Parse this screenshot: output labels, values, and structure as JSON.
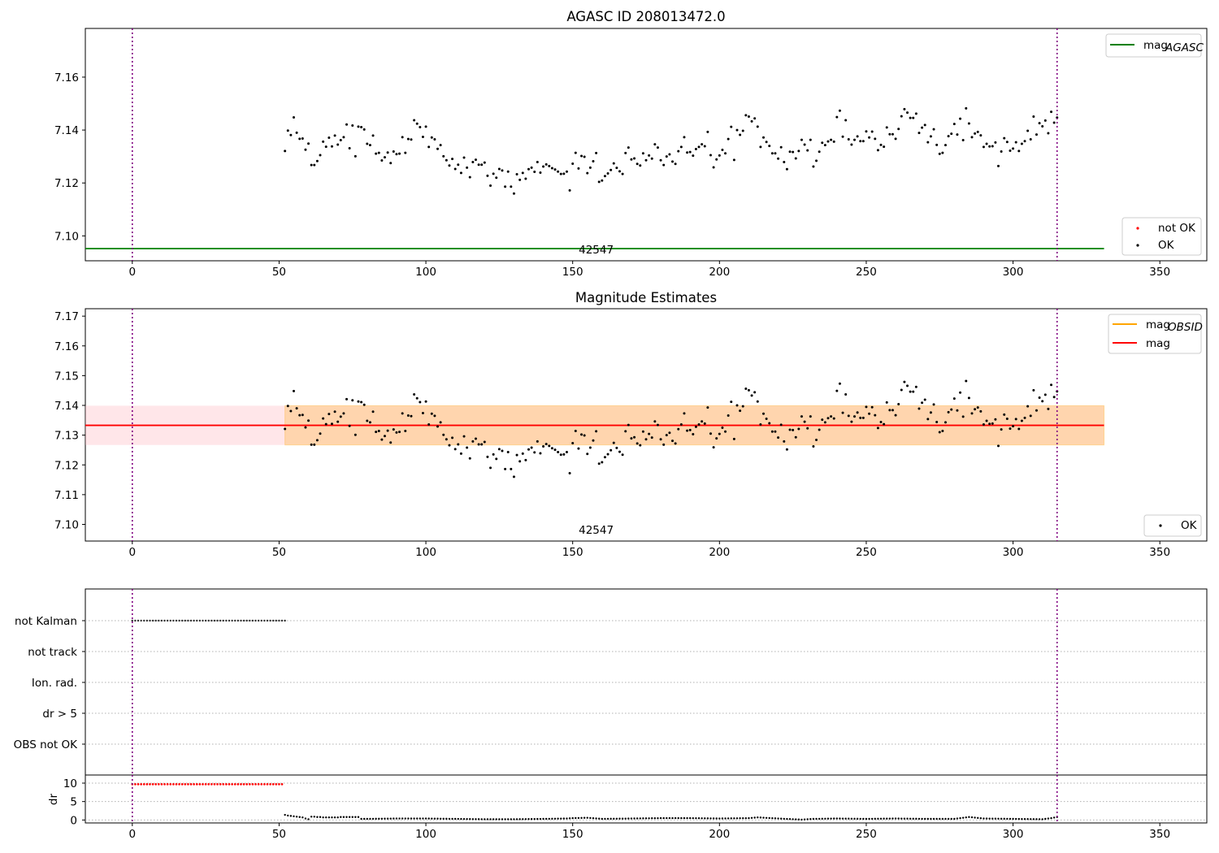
{
  "chart_data": [
    {
      "type": "scatter",
      "title": "AGASC ID 208013472.0",
      "annotation": "42547",
      "x_ticks": [
        0,
        50,
        100,
        150,
        200,
        250,
        300,
        350
      ],
      "y_ticks": [
        "7.10",
        "7.12",
        "7.14",
        "7.16"
      ],
      "xlim": [
        -16,
        366
      ],
      "ylim": [
        7.0906,
        7.1784
      ],
      "vlines": [
        0,
        315
      ],
      "legend_top": [
        {
          "label": "mag",
          "sub": "AGASC",
          "color": "#008000"
        }
      ],
      "legend_bottom": [
        {
          "label": "not OK",
          "color": "#ff0000"
        },
        {
          "label": "OK",
          "color": "#000000"
        }
      ],
      "line": {
        "name": "mag_AGASC",
        "x": [
          -16,
          331
        ],
        "y": 7.0952,
        "color": "#008000"
      },
      "series": [
        {
          "name": "OK",
          "color": "#000000",
          "ref": "points"
        }
      ]
    },
    {
      "type": "scatter",
      "title": "Magnitude Estimates",
      "annotation": "42547",
      "x_ticks": [
        0,
        50,
        100,
        150,
        200,
        250,
        300,
        350
      ],
      "y_ticks": [
        "7.10",
        "7.11",
        "7.12",
        "7.13",
        "7.14",
        "7.15",
        "7.16",
        "7.17"
      ],
      "xlim": [
        -16,
        366
      ],
      "ylim": [
        7.0944,
        7.1725
      ],
      "vlines": [
        0,
        315
      ],
      "legend_top": [
        {
          "label": "mag",
          "sub": "OBSID",
          "color": "#ffa500"
        },
        {
          "label": "mag",
          "sub": "",
          "color": "#ff0000"
        }
      ],
      "legend_bottom": [
        {
          "label": "OK",
          "color": "#000000"
        }
      ],
      "mag_line": 7.1333,
      "band_inner": [
        7.1267,
        7.1399
      ],
      "band_outer": [
        7.1267,
        7.1399
      ],
      "series": [
        {
          "name": "OK",
          "color": "#000000",
          "ref": "points"
        }
      ]
    },
    {
      "type": "scatter",
      "title": "",
      "flag_labels": [
        "not Kalman",
        "not track",
        "Ion. rad.",
        "dr > 5",
        "OBS not OK"
      ],
      "not_kalman_x": [
        0,
        52
      ],
      "xlim": [
        -16,
        366
      ],
      "vlines": [
        0,
        315
      ]
    },
    {
      "type": "scatter",
      "title": "",
      "ylabel": "dr",
      "y_ticks": [
        "0",
        "5",
        "10"
      ],
      "x_ticks": [
        0,
        50,
        100,
        150,
        200,
        250,
        300,
        350
      ],
      "ylim": [
        -0.8,
        12.2
      ],
      "xlim": [
        -16,
        366
      ],
      "dr_high": {
        "x": [
          0,
          51.5
        ],
        "y": 9.7,
        "color": "#ff0000"
      },
      "dr_points": [
        [
          52,
          1.4
        ],
        [
          53,
          1.2
        ],
        [
          54,
          1.1
        ],
        [
          55,
          1.0
        ],
        [
          56,
          0.9
        ],
        [
          57,
          0.8
        ],
        [
          58,
          0.7
        ],
        [
          59,
          0.4
        ],
        [
          60,
          0.2
        ],
        [
          61,
          0.9
        ],
        [
          62,
          0.9
        ],
        [
          63,
          0.8
        ],
        [
          64,
          0.8
        ],
        [
          65,
          0.7
        ],
        [
          66,
          0.7
        ],
        [
          67,
          0.7
        ],
        [
          68,
          0.7
        ],
        [
          69,
          0.7
        ],
        [
          70,
          0.7
        ],
        [
          71,
          0.8
        ],
        [
          72,
          0.8
        ],
        [
          73,
          0.8
        ],
        [
          74,
          0.8
        ],
        [
          75,
          0.8
        ],
        [
          76,
          0.8
        ],
        [
          77,
          0.8
        ],
        [
          78,
          0.3
        ],
        [
          80,
          0.3
        ],
        [
          90,
          0.4
        ],
        [
          100,
          0.4
        ],
        [
          110,
          0.3
        ],
        [
          120,
          0.2
        ],
        [
          130,
          0.2
        ],
        [
          140,
          0.3
        ],
        [
          148,
          0.4
        ],
        [
          150,
          0.5
        ],
        [
          155,
          0.6
        ],
        [
          160,
          0.3
        ],
        [
          170,
          0.4
        ],
        [
          180,
          0.5
        ],
        [
          190,
          0.5
        ],
        [
          200,
          0.4
        ],
        [
          210,
          0.5
        ],
        [
          213,
          0.7
        ],
        [
          220,
          0.4
        ],
        [
          228,
          0.1
        ],
        [
          232,
          0.3
        ],
        [
          240,
          0.4
        ],
        [
          250,
          0.3
        ],
        [
          260,
          0.4
        ],
        [
          270,
          0.3
        ],
        [
          280,
          0.3
        ],
        [
          285,
          0.8
        ],
        [
          290,
          0.4
        ],
        [
          300,
          0.3
        ],
        [
          310,
          0.2
        ],
        [
          313,
          0.5
        ],
        [
          315,
          0.8
        ]
      ]
    }
  ],
  "points": [
    [
      52,
      7.1321
    ],
    [
      53,
      7.1398
    ],
    [
      54,
      7.1381
    ],
    [
      55,
      7.1448
    ],
    [
      56,
      7.139
    ],
    [
      57,
      7.1367
    ],
    [
      58,
      7.1368
    ],
    [
      59,
      7.1326
    ],
    [
      60,
      7.1349
    ],
    [
      61,
      7.1268
    ],
    [
      62,
      7.1268
    ],
    [
      63,
      7.1283
    ],
    [
      64,
      7.1305
    ],
    [
      65,
      7.1356
    ],
    [
      66,
      7.1337
    ],
    [
      67,
      7.1371
    ],
    [
      68,
      7.1338
    ],
    [
      69,
      7.1379
    ],
    [
      70,
      7.1345
    ],
    [
      71,
      7.1362
    ],
    [
      72,
      7.1373
    ],
    [
      73,
      7.1421
    ],
    [
      74,
      7.1331
    ],
    [
      75,
      7.1417
    ],
    [
      76,
      7.1301
    ],
    [
      77,
      7.1413
    ],
    [
      78,
      7.1411
    ],
    [
      79,
      7.1402
    ],
    [
      80,
      7.1348
    ],
    [
      81,
      7.1343
    ],
    [
      82,
      7.1379
    ],
    [
      83,
      7.1311
    ],
    [
      84,
      7.1314
    ],
    [
      85,
      7.1285
    ],
    [
      86,
      7.1297
    ],
    [
      87,
      7.1315
    ],
    [
      88,
      7.1275
    ],
    [
      89,
      7.1319
    ],
    [
      90,
      7.1309
    ],
    [
      91,
      7.1311
    ],
    [
      92,
      7.1373
    ],
    [
      93,
      7.1314
    ],
    [
      94,
      7.1366
    ],
    [
      95,
      7.1364
    ],
    [
      96,
      7.1437
    ],
    [
      97,
      7.1424
    ],
    [
      98,
      7.1411
    ],
    [
      99,
      7.1374
    ],
    [
      100,
      7.1413
    ],
    [
      101,
      7.1336
    ],
    [
      102,
      7.1372
    ],
    [
      103,
      7.1365
    ],
    [
      104,
      7.1329
    ],
    [
      105,
      7.1343
    ],
    [
      106,
      7.1301
    ],
    [
      107,
      7.1286
    ],
    [
      108,
      7.1266
    ],
    [
      109,
      7.1291
    ],
    [
      110,
      7.1253
    ],
    [
      111,
      7.1269
    ],
    [
      112,
      7.1238
    ],
    [
      113,
      7.1296
    ],
    [
      114,
      7.1258
    ],
    [
      115,
      7.1222
    ],
    [
      116,
      7.1279
    ],
    [
      117,
      7.1288
    ],
    [
      118,
      7.1269
    ],
    [
      119,
      7.1269
    ],
    [
      120,
      7.1277
    ],
    [
      121,
      7.1227
    ],
    [
      122,
      7.119
    ],
    [
      123,
      7.1235
    ],
    [
      124,
      7.122
    ],
    [
      125,
      7.1253
    ],
    [
      126,
      7.1247
    ],
    [
      127,
      7.1186
    ],
    [
      128,
      7.1243
    ],
    [
      129,
      7.1186
    ],
    [
      130,
      7.116
    ],
    [
      131,
      7.1233
    ],
    [
      132,
      7.1212
    ],
    [
      133,
      7.1238
    ],
    [
      134,
      7.1216
    ],
    [
      135,
      7.1252
    ],
    [
      136,
      7.1258
    ],
    [
      137,
      7.1242
    ],
    [
      138,
      7.1279
    ],
    [
      139,
      7.1239
    ],
    [
      140,
      7.1262
    ],
    [
      141,
      7.127
    ],
    [
      142,
      7.1264
    ],
    [
      143,
      7.1256
    ],
    [
      144,
      7.1251
    ],
    [
      145,
      7.1243
    ],
    [
      146,
      7.1234
    ],
    [
      147,
      7.1235
    ],
    [
      148,
      7.1243
    ],
    [
      149,
      7.1172
    ],
    [
      150,
      7.1273
    ],
    [
      151,
      7.1314
    ],
    [
      152,
      7.1255
    ],
    [
      153,
      7.1302
    ],
    [
      154,
      7.1299
    ],
    [
      155,
      7.1237
    ],
    [
      156,
      7.1258
    ],
    [
      157,
      7.1282
    ],
    [
      158,
      7.1313
    ],
    [
      159,
      7.1204
    ],
    [
      160,
      7.1209
    ],
    [
      161,
      7.1226
    ],
    [
      162,
      7.1236
    ],
    [
      163,
      7.1249
    ],
    [
      164,
      7.1274
    ],
    [
      165,
      7.1257
    ],
    [
      166,
      7.1244
    ],
    [
      167,
      7.1234
    ],
    [
      168,
      7.1313
    ],
    [
      169,
      7.1334
    ],
    [
      170,
      7.1289
    ],
    [
      171,
      7.1293
    ],
    [
      172,
      7.1272
    ],
    [
      173,
      7.1266
    ],
    [
      174,
      7.1312
    ],
    [
      175,
      7.1286
    ],
    [
      176,
      7.1304
    ],
    [
      177,
      7.1292
    ],
    [
      178,
      7.1346
    ],
    [
      179,
      7.1334
    ],
    [
      180,
      7.1286
    ],
    [
      181,
      7.1268
    ],
    [
      182,
      7.13
    ],
    [
      183,
      7.1308
    ],
    [
      184,
      7.1281
    ],
    [
      185,
      7.1272
    ],
    [
      186,
      7.132
    ],
    [
      187,
      7.1336
    ],
    [
      188,
      7.1373
    ],
    [
      189,
      7.1315
    ],
    [
      190,
      7.1317
    ],
    [
      191,
      7.1303
    ],
    [
      192,
      7.1328
    ],
    [
      193,
      7.1336
    ],
    [
      194,
      7.1346
    ],
    [
      195,
      7.1339
    ],
    [
      196,
      7.1393
    ],
    [
      197,
      7.1305
    ],
    [
      198,
      7.1259
    ],
    [
      199,
      7.1289
    ],
    [
      200,
      7.1304
    ],
    [
      201,
      7.1325
    ],
    [
      202,
      7.1312
    ],
    [
      203,
      7.1366
    ],
    [
      204,
      7.1412
    ],
    [
      205,
      7.1287
    ],
    [
      206,
      7.14
    ],
    [
      207,
      7.1382
    ],
    [
      208,
      7.1397
    ],
    [
      209,
      7.1456
    ],
    [
      210,
      7.1451
    ],
    [
      211,
      7.1433
    ],
    [
      212,
      7.1444
    ],
    [
      213,
      7.1413
    ],
    [
      214,
      7.1336
    ],
    [
      215,
      7.1372
    ],
    [
      216,
      7.1355
    ],
    [
      217,
      7.134
    ],
    [
      218,
      7.1312
    ],
    [
      219,
      7.1312
    ],
    [
      220,
      7.1292
    ],
    [
      221,
      7.1335
    ],
    [
      222,
      7.1279
    ],
    [
      223,
      7.1252
    ],
    [
      224,
      7.1318
    ],
    [
      225,
      7.1317
    ],
    [
      226,
      7.1293
    ],
    [
      227,
      7.1321
    ],
    [
      228,
      7.1363
    ],
    [
      229,
      7.1345
    ],
    [
      230,
      7.1323
    ],
    [
      231,
      7.1363
    ],
    [
      232,
      7.1262
    ],
    [
      233,
      7.1284
    ],
    [
      234,
      7.1318
    ],
    [
      235,
      7.1352
    ],
    [
      236,
      7.1343
    ],
    [
      237,
      7.1357
    ],
    [
      238,
      7.1363
    ],
    [
      239,
      7.1356
    ],
    [
      240,
      7.1449
    ],
    [
      241,
      7.1473
    ],
    [
      242,
      7.1375
    ],
    [
      243,
      7.1437
    ],
    [
      244,
      7.1365
    ],
    [
      245,
      7.1345
    ],
    [
      246,
      7.1363
    ],
    [
      247,
      7.1376
    ],
    [
      248,
      7.1358
    ],
    [
      249,
      7.1358
    ],
    [
      250,
      7.1395
    ],
    [
      251,
      7.1372
    ],
    [
      252,
      7.1394
    ],
    [
      253,
      7.1367
    ],
    [
      254,
      7.1324
    ],
    [
      255,
      7.1344
    ],
    [
      256,
      7.1337
    ],
    [
      257,
      7.141
    ],
    [
      258,
      7.1384
    ],
    [
      259,
      7.1384
    ],
    [
      260,
      7.1367
    ],
    [
      261,
      7.1404
    ],
    [
      262,
      7.1452
    ],
    [
      263,
      7.1479
    ],
    [
      264,
      7.1466
    ],
    [
      265,
      7.1446
    ],
    [
      266,
      7.1446
    ],
    [
      267,
      7.1462
    ],
    [
      268,
      7.1389
    ],
    [
      269,
      7.1409
    ],
    [
      270,
      7.1419
    ],
    [
      271,
      7.1354
    ],
    [
      272,
      7.1376
    ],
    [
      273,
      7.1403
    ],
    [
      274,
      7.1344
    ],
    [
      275,
      7.131
    ],
    [
      276,
      7.1314
    ],
    [
      277,
      7.1343
    ],
    [
      278,
      7.1377
    ],
    [
      279,
      7.1386
    ],
    [
      280,
      7.1423
    ],
    [
      281,
      7.1383
    ],
    [
      282,
      7.1443
    ],
    [
      283,
      7.1362
    ],
    [
      284,
      7.1482
    ],
    [
      285,
      7.1425
    ],
    [
      286,
      7.1373
    ],
    [
      287,
      7.1387
    ],
    [
      288,
      7.1393
    ],
    [
      289,
      7.138
    ],
    [
      290,
      7.1336
    ],
    [
      291,
      7.1348
    ],
    [
      292,
      7.1338
    ],
    [
      293,
      7.1339
    ],
    [
      294,
      7.1353
    ],
    [
      295,
      7.1264
    ],
    [
      296,
      7.1319
    ],
    [
      297,
      7.1369
    ],
    [
      298,
      7.1355
    ],
    [
      299,
      7.1322
    ],
    [
      300,
      7.133
    ],
    [
      301,
      7.1354
    ],
    [
      302,
      7.1321
    ],
    [
      303,
      7.1348
    ],
    [
      304,
      7.1358
    ],
    [
      305,
      7.1397
    ],
    [
      306,
      7.1365
    ],
    [
      307,
      7.1451
    ],
    [
      308,
      7.1383
    ],
    [
      309,
      7.1426
    ],
    [
      310,
      7.1414
    ],
    [
      311,
      7.1436
    ],
    [
      312,
      7.1388
    ],
    [
      313,
      7.1469
    ],
    [
      314,
      7.1428
    ],
    [
      315,
      7.1447
    ]
  ]
}
